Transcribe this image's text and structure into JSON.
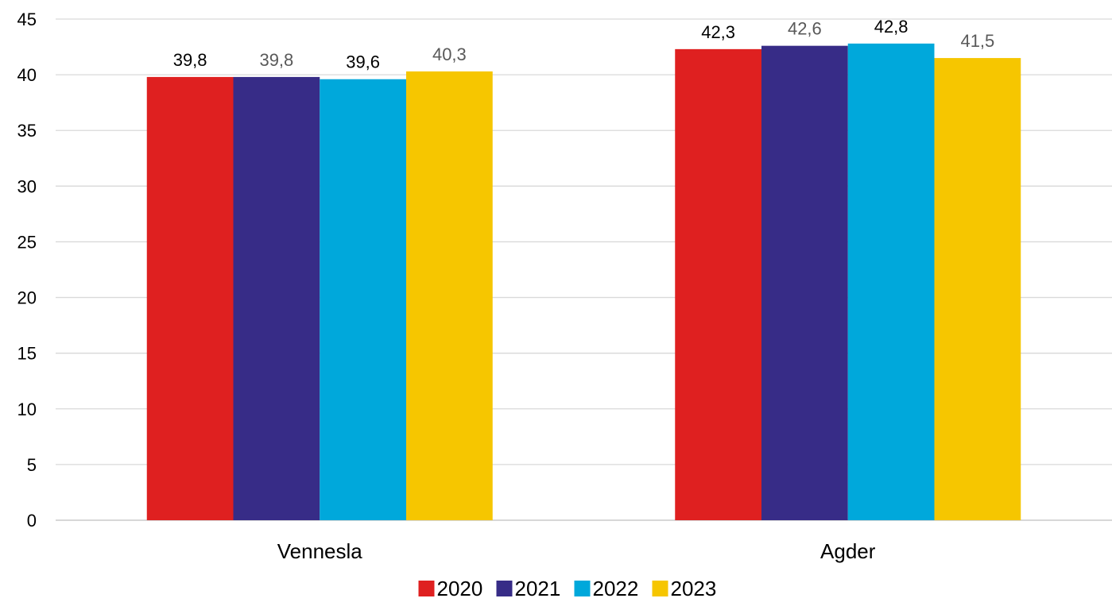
{
  "chart_data": {
    "type": "bar",
    "categories": [
      "Vennesla",
      "Agder"
    ],
    "series": [
      {
        "name": "2020",
        "values": [
          39.8,
          42.3
        ],
        "labels": [
          "39,8",
          "42,3"
        ],
        "color": "#DF2020",
        "label_color": "#000000"
      },
      {
        "name": "2021",
        "values": [
          39.8,
          42.6
        ],
        "labels": [
          "39,8",
          "42,6"
        ],
        "color": "#372C87",
        "label_color": "#595959"
      },
      {
        "name": "2022",
        "values": [
          39.6,
          42.8
        ],
        "labels": [
          "39,6",
          "42,8"
        ],
        "color": "#00A8DB",
        "label_color": "#000000"
      },
      {
        "name": "2023",
        "values": [
          40.3,
          41.5
        ],
        "labels": [
          "40,3",
          "41,5"
        ],
        "color": "#F6C600",
        "label_color": "#595959"
      }
    ],
    "ylim": [
      0,
      45
    ],
    "yticks": [
      0,
      5,
      10,
      15,
      20,
      25,
      30,
      35,
      40,
      45
    ],
    "ytick_labels": [
      "0",
      "5",
      "10",
      "15",
      "20",
      "25",
      "30",
      "35",
      "40",
      "45"
    ],
    "grid": true,
    "legend_position": "bottom",
    "title": "",
    "xlabel": "",
    "ylabel": ""
  }
}
